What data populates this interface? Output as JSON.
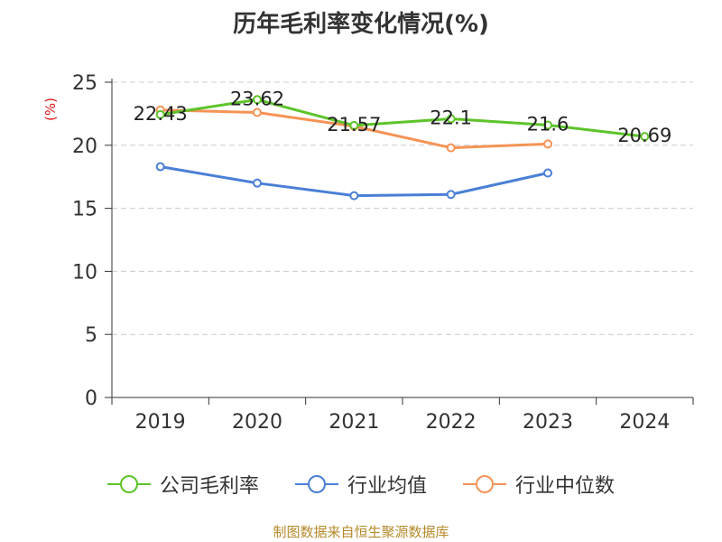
{
  "title": "历年毛利率变化情况(%)",
  "unit_label": "(%)",
  "source": "制图数据来自恒生聚源数据库",
  "chart_data": {
    "type": "line",
    "title": "历年毛利率变化情况(%)",
    "ylabel": "(%)",
    "categories": [
      "2019",
      "2020",
      "2021",
      "2022",
      "2023",
      "2024"
    ],
    "ylim": [
      0,
      25
    ],
    "yticks": [
      0,
      5,
      10,
      15,
      20,
      25
    ],
    "grid": true,
    "legend_position": "bottom",
    "series": [
      {
        "name": "公司毛利率",
        "color": "#5dc32a",
        "values": [
          22.43,
          23.62,
          21.57,
          22.1,
          21.6,
          20.69
        ],
        "labels": [
          "22.43",
          "23.62",
          "21.57",
          "22.1",
          "21.6",
          "20.69"
        ]
      },
      {
        "name": "行业均值",
        "color": "#4a7fd6",
        "values": [
          18.3,
          17.0,
          16.0,
          16.1,
          17.8,
          null
        ],
        "labels": null
      },
      {
        "name": "行业中位数",
        "color": "#f59355",
        "values": [
          22.8,
          22.6,
          21.5,
          19.8,
          20.1,
          null
        ],
        "labels": null
      }
    ]
  }
}
